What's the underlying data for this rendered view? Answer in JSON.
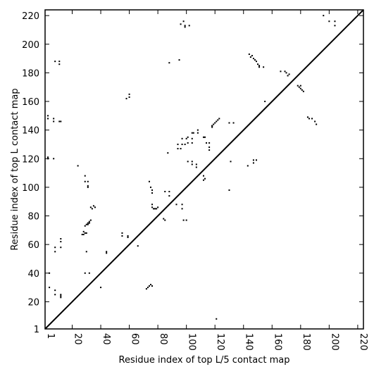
{
  "chart_data": {
    "type": "scatter",
    "title": "",
    "xlabel": "Residue index of top L/5 contact map",
    "ylabel": "Residue index of top L contact map",
    "xlim": [
      1,
      224
    ],
    "ylim": [
      1,
      224
    ],
    "x_ticks": [
      1,
      20,
      40,
      60,
      80,
      100,
      120,
      140,
      160,
      180,
      200,
      220
    ],
    "y_ticks": [
      1,
      20,
      40,
      60,
      80,
      100,
      120,
      140,
      160,
      180,
      200,
      220
    ],
    "diagonal": true,
    "marker": "square",
    "marker_color": "#000000",
    "grid": false,
    "points_upper": [
      [
        8,
        188
      ],
      [
        11,
        188
      ],
      [
        11,
        186
      ],
      [
        88,
        187
      ],
      [
        95,
        189
      ],
      [
        96,
        214
      ],
      [
        98,
        216
      ],
      [
        99,
        213
      ],
      [
        99,
        212
      ],
      [
        102,
        213
      ],
      [
        3,
        150
      ],
      [
        3,
        148
      ],
      [
        7,
        148
      ],
      [
        7,
        146
      ],
      [
        11,
        146
      ],
      [
        12,
        146
      ],
      [
        3,
        121
      ],
      [
        3,
        120
      ],
      [
        7,
        120
      ],
      [
        58,
        162
      ],
      [
        60,
        165
      ],
      [
        60,
        163
      ],
      [
        87,
        124
      ],
      [
        94,
        127
      ],
      [
        94,
        130
      ],
      [
        96,
        127
      ],
      [
        97,
        130
      ],
      [
        97,
        134
      ],
      [
        99,
        130
      ],
      [
        100,
        134
      ],
      [
        101,
        135
      ],
      [
        101,
        131
      ],
      [
        104,
        134
      ],
      [
        104,
        138
      ],
      [
        105,
        138
      ],
      [
        104,
        131
      ],
      [
        108,
        138
      ],
      [
        108,
        140
      ],
      [
        112,
        135
      ],
      [
        113,
        135
      ],
      [
        114,
        131
      ],
      [
        116,
        131
      ],
      [
        116,
        128
      ],
      [
        116,
        126
      ],
      [
        118,
        143
      ],
      [
        119,
        144
      ],
      [
        120,
        145
      ],
      [
        121,
        146
      ],
      [
        122,
        147
      ],
      [
        123,
        148
      ],
      [
        101,
        118
      ],
      [
        104,
        118
      ],
      [
        104,
        116
      ],
      [
        107,
        116
      ],
      [
        107,
        114
      ],
      [
        112,
        108
      ],
      [
        112,
        105
      ],
      [
        113,
        106
      ],
      [
        118,
        143
      ],
      [
        118,
        142
      ],
      [
        130,
        145
      ],
      [
        133,
        145
      ]
    ],
    "points_lower": [
      [
        144,
        193
      ],
      [
        145,
        191
      ],
      [
        146,
        192
      ],
      [
        147,
        190
      ],
      [
        148,
        189
      ],
      [
        149,
        188
      ],
      [
        150,
        186
      ],
      [
        151,
        185
      ],
      [
        151,
        184
      ],
      [
        154,
        184
      ],
      [
        155,
        160
      ],
      [
        166,
        181
      ],
      [
        169,
        181
      ],
      [
        170,
        180
      ],
      [
        171,
        178
      ],
      [
        172,
        179
      ],
      [
        178,
        171
      ],
      [
        179,
        170
      ],
      [
        180,
        169
      ],
      [
        181,
        168
      ],
      [
        182,
        167
      ],
      [
        180,
        171
      ],
      [
        185,
        149
      ],
      [
        186,
        148
      ],
      [
        188,
        148
      ],
      [
        190,
        146
      ],
      [
        191,
        144
      ],
      [
        196,
        220
      ],
      [
        200,
        216
      ],
      [
        204,
        216
      ],
      [
        204,
        213
      ],
      [
        143,
        115
      ],
      [
        147,
        119
      ],
      [
        147,
        117
      ],
      [
        149,
        119
      ],
      [
        131,
        118
      ],
      [
        130,
        98
      ],
      [
        121,
        8
      ],
      [
        24,
        115
      ],
      [
        29,
        108
      ],
      [
        29,
        104
      ],
      [
        31,
        104
      ],
      [
        31,
        101
      ],
      [
        31,
        100
      ],
      [
        28,
        69
      ],
      [
        29,
        68
      ],
      [
        30,
        68
      ],
      [
        31,
        74
      ],
      [
        32,
        75
      ],
      [
        32,
        76
      ],
      [
        33,
        77
      ],
      [
        33,
        86
      ],
      [
        34,
        85
      ],
      [
        35,
        87
      ],
      [
        36,
        86
      ],
      [
        27,
        67
      ],
      [
        28,
        67
      ],
      [
        29,
        73
      ],
      [
        30,
        74
      ],
      [
        31,
        75
      ],
      [
        30,
        55
      ],
      [
        29,
        40
      ],
      [
        32,
        40
      ],
      [
        40,
        30
      ],
      [
        44,
        55
      ],
      [
        44,
        54
      ],
      [
        55,
        68
      ],
      [
        55,
        66
      ],
      [
        59,
        66
      ],
      [
        59,
        65
      ],
      [
        66,
        59
      ],
      [
        72,
        29
      ],
      [
        73,
        30
      ],
      [
        74,
        31
      ],
      [
        75,
        32
      ],
      [
        76,
        31
      ],
      [
        74,
        104
      ],
      [
        75,
        100
      ],
      [
        76,
        98
      ],
      [
        76,
        96
      ],
      [
        76,
        88
      ],
      [
        76,
        86
      ],
      [
        77,
        85
      ],
      [
        78,
        85
      ],
      [
        79,
        85
      ],
      [
        80,
        86
      ],
      [
        84,
        78
      ],
      [
        85,
        77
      ],
      [
        85,
        97
      ],
      [
        88,
        97
      ],
      [
        88,
        94
      ],
      [
        93,
        88
      ],
      [
        97,
        88
      ],
      [
        97,
        85
      ],
      [
        98,
        77
      ],
      [
        100,
        77
      ],
      [
        4,
        40
      ],
      [
        4,
        30
      ],
      [
        8,
        58
      ],
      [
        8,
        55
      ],
      [
        8,
        28
      ],
      [
        8,
        25
      ],
      [
        12,
        64
      ],
      [
        12,
        62
      ],
      [
        12,
        58
      ],
      [
        12,
        25
      ],
      [
        12,
        24
      ],
      [
        12,
        23
      ]
    ]
  }
}
